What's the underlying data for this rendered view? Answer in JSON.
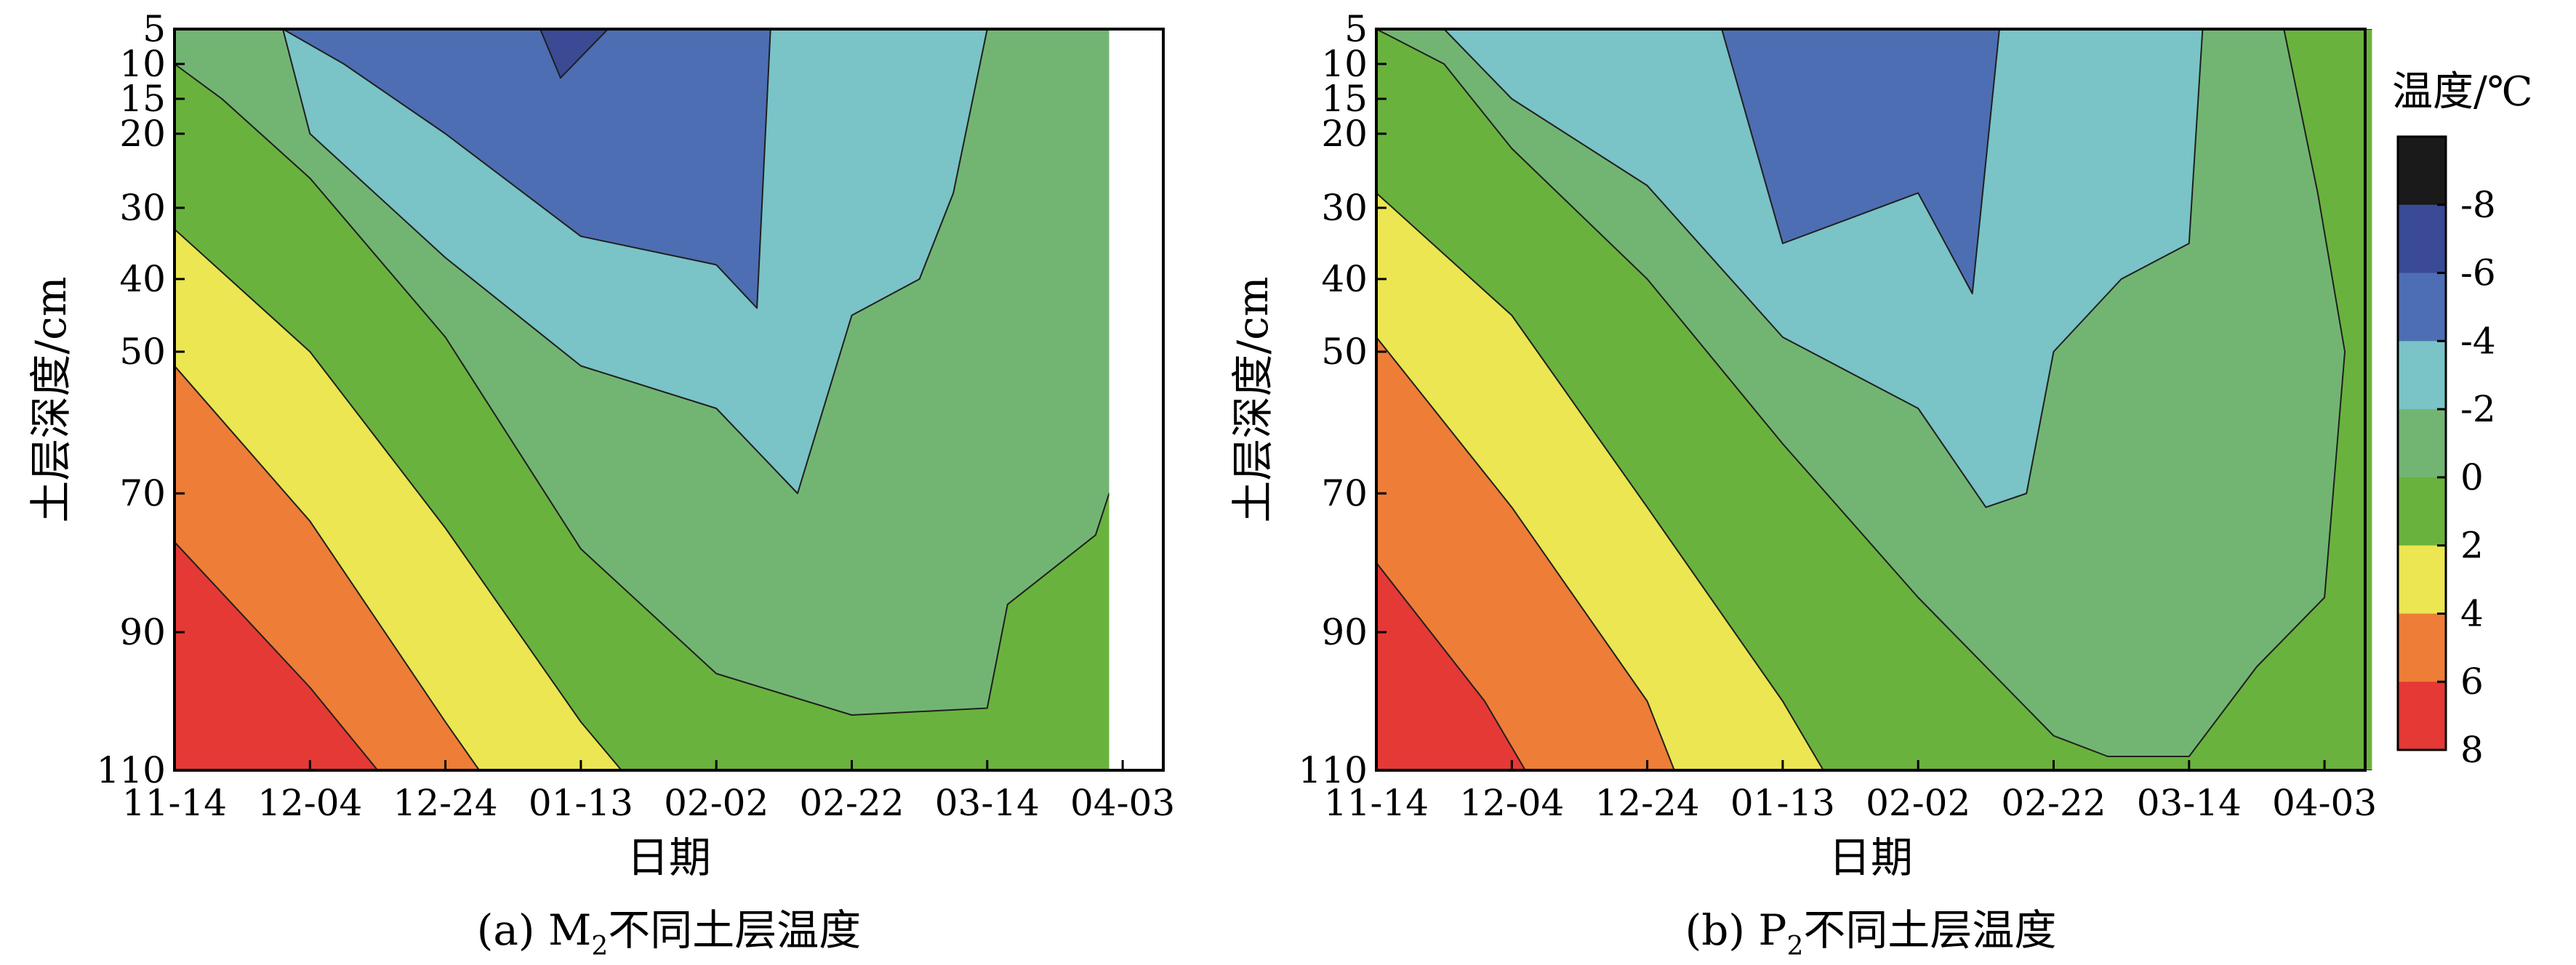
{
  "chart_data": [
    {
      "type": "heatmap",
      "subtype": "filled-contour",
      "caption_prefix": "(a) M",
      "caption_sub": "2",
      "caption_suffix": "不同土层温度",
      "xlabel": "日期",
      "ylabel": "土层深度/cm",
      "x_ticks": [
        "11-14",
        "12-04",
        "12-24",
        "01-13",
        "02-02",
        "02-22",
        "03-14",
        "04-03"
      ],
      "y_ticks": [
        5,
        10,
        15,
        20,
        30,
        40,
        50,
        70,
        90,
        110
      ],
      "y_direction": "depth increases downward",
      "data_end": "04-01",
      "contour_boundaries": [
        {
          "level": 6,
          "depth_by_date": [
            [
              "11-14",
              77
            ],
            [
              "12-04",
              98
            ],
            [
              "12-14",
              110
            ]
          ]
        },
        {
          "level": 4,
          "depth_by_date": [
            [
              "11-14",
              52
            ],
            [
              "12-04",
              74
            ],
            [
              "12-24",
              103
            ],
            [
              "12-29",
              110
            ]
          ]
        },
        {
          "level": 2,
          "depth_by_date": [
            [
              "11-14",
              33
            ],
            [
              "12-04",
              50
            ],
            [
              "12-24",
              75
            ],
            [
              "01-13",
              103
            ],
            [
              "01-19",
              110
            ]
          ]
        },
        {
          "level": 0,
          "depth_by_date": [
            [
              "11-14",
              10
            ],
            [
              "11-21",
              15
            ],
            [
              "12-04",
              26
            ],
            [
              "12-24",
              48
            ],
            [
              "01-13",
              78
            ],
            [
              "02-02",
              96
            ],
            [
              "02-22",
              102
            ],
            [
              "03-14",
              101
            ],
            [
              "03-17",
              86
            ],
            [
              "03-30",
              76
            ],
            [
              "04-01",
              70
            ]
          ]
        },
        {
          "level": -2,
          "depth_by_date": [
            [
              "11-30",
              5
            ],
            [
              "12-04",
              20
            ],
            [
              "12-24",
              37
            ],
            [
              "01-13",
              52
            ],
            [
              "02-02",
              58
            ],
            [
              "02-14",
              70
            ],
            [
              "02-22",
              45
            ],
            [
              "03-04",
              40
            ],
            [
              "03-09",
              28
            ],
            [
              "03-14",
              5
            ]
          ]
        },
        {
          "level": -4,
          "depth_by_date": [
            [
              "11-30",
              5
            ],
            [
              "12-09",
              10
            ],
            [
              "12-24",
              20
            ],
            [
              "01-13",
              34
            ],
            [
              "02-02",
              38
            ],
            [
              "02-08",
              44
            ],
            [
              "02-10",
              5
            ]
          ]
        },
        {
          "level": -6,
          "depth_by_date": [
            [
              "01-07",
              5
            ],
            [
              "01-10",
              12
            ],
            [
              "01-14",
              8
            ],
            [
              "01-17",
              5
            ]
          ]
        }
      ]
    },
    {
      "type": "heatmap",
      "subtype": "filled-contour",
      "caption_prefix": "(b) P",
      "caption_sub": "2",
      "caption_suffix": "不同土层温度",
      "xlabel": "日期",
      "ylabel": "土层深度/cm",
      "x_ticks": [
        "11-14",
        "12-04",
        "12-24",
        "01-13",
        "02-02",
        "02-22",
        "03-14",
        "04-03"
      ],
      "y_ticks": [
        5,
        10,
        15,
        20,
        30,
        40,
        50,
        70,
        90,
        110
      ],
      "y_direction": "depth increases downward",
      "data_end": "04-10",
      "contour_boundaries": [
        {
          "level": 6,
          "depth_by_date": [
            [
              "11-14",
              80
            ],
            [
              "11-30",
              100
            ],
            [
              "12-06",
              110
            ]
          ]
        },
        {
          "level": 4,
          "depth_by_date": [
            [
              "11-14",
              48
            ],
            [
              "12-04",
              72
            ],
            [
              "12-24",
              100
            ],
            [
              "12-28",
              110
            ]
          ]
        },
        {
          "level": 2,
          "depth_by_date": [
            [
              "11-14",
              28
            ],
            [
              "12-04",
              45
            ],
            [
              "12-24",
              72
            ],
            [
              "01-13",
              100
            ],
            [
              "01-19",
              110
            ]
          ]
        },
        {
          "level": 0,
          "depth_by_date": [
            [
              "11-14",
              5
            ],
            [
              "11-24",
              10
            ],
            [
              "12-04",
              22
            ],
            [
              "12-24",
              40
            ],
            [
              "01-13",
              63
            ],
            [
              "02-02",
              85
            ],
            [
              "02-22",
              105
            ],
            [
              "03-02",
              108
            ],
            [
              "03-14",
              108
            ],
            [
              "03-24",
              95
            ],
            [
              "04-03",
              85
            ],
            [
              "04-06",
              50
            ],
            [
              "04-02",
              28
            ],
            [
              "03-28",
              5
            ]
          ]
        },
        {
          "level": -2,
          "depth_by_date": [
            [
              "11-24",
              5
            ],
            [
              "12-04",
              15
            ],
            [
              "12-24",
              27
            ],
            [
              "01-13",
              48
            ],
            [
              "02-02",
              58
            ],
            [
              "02-12",
              72
            ],
            [
              "02-18",
              70
            ],
            [
              "02-22",
              50
            ],
            [
              "03-04",
              40
            ],
            [
              "03-14",
              35
            ],
            [
              "03-16",
              5
            ]
          ]
        },
        {
          "level": -4,
          "depth_by_date": [
            [
              "01-04",
              5
            ],
            [
              "01-13",
              35
            ],
            [
              "02-02",
              28
            ],
            [
              "02-10",
              42
            ],
            [
              "02-14",
              5
            ]
          ]
        }
      ]
    }
  ],
  "colorbar": {
    "title": "温度/℃",
    "tick_labels": [
      "-8",
      "-6",
      "-4",
      "-2",
      "0",
      "2",
      "4",
      "6",
      "8"
    ],
    "bands": [
      {
        "range": "< -8",
        "color": "#1a1a1a"
      },
      {
        "range": "-8 ~ -6",
        "color": "#3a4a95"
      },
      {
        "range": "-6 ~ -4",
        "color": "#4d6eb3"
      },
      {
        "range": "-4 ~ -2",
        "color": "#7ac3c6"
      },
      {
        "range": "-2 ~ 0",
        "color": "#72b573"
      },
      {
        "range": "0 ~ 2",
        "color": "#6ab23e"
      },
      {
        "range": "2 ~ 4",
        "color": "#ebe652"
      },
      {
        "range": "4 ~ 6",
        "color": "#ee7d37"
      },
      {
        "range": "6 ~ 8",
        "color": "#e53935"
      }
    ]
  }
}
